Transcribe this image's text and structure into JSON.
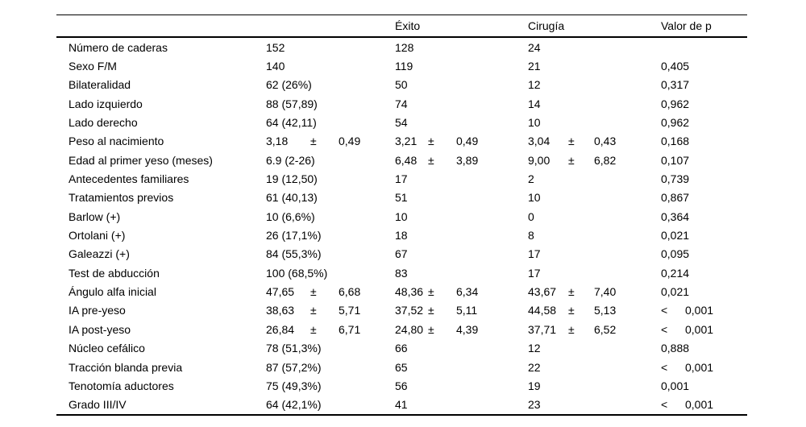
{
  "table": {
    "columns": [
      "",
      "",
      "Éxito",
      "Cirugía",
      "Valor de p"
    ],
    "pm_symbol": "±",
    "lt_symbol": "<",
    "rows": [
      {
        "label": "Número de caderas",
        "total": "152",
        "exito": "128",
        "cirugia": "24",
        "p": ""
      },
      {
        "label": "Sexo F/M",
        "total": "140",
        "exito": "119",
        "cirugia": "21",
        "p": "0,405"
      },
      {
        "label": "Bilateralidad",
        "total": "62 (26%)",
        "exito": "50",
        "cirugia": "12",
        "p": "0,317"
      },
      {
        "label": "Lado izquierdo",
        "total": "88 (57,89)",
        "exito": "74",
        "cirugia": "14",
        "p": "0,962"
      },
      {
        "label": "Lado derecho",
        "total": "64 (42,11)",
        "exito": "54",
        "cirugia": "10",
        "p": "0,962"
      },
      {
        "label": "Peso al nacimiento",
        "total": {
          "v": "3,18",
          "sd": "0,49"
        },
        "exito": {
          "v": "3,21",
          "sd": "0,49"
        },
        "cirugia": {
          "v": "3,04",
          "sd": "0,43"
        },
        "p": "0,168"
      },
      {
        "label": "Edad al primer yeso (meses)",
        "total": "6.9 (2-26)",
        "exito": {
          "v": "6,48",
          "sd": "3,89"
        },
        "cirugia": {
          "v": "9,00",
          "sd": "6,82"
        },
        "p": "0,107"
      },
      {
        "label": "Antecedentes familiares",
        "total": "19 (12,50)",
        "exito": "17",
        "cirugia": "2",
        "p": "0,739"
      },
      {
        "label": "Tratamientos previos",
        "total": "61 (40,13)",
        "exito": "51",
        "cirugia": "10",
        "p": "0,867"
      },
      {
        "label": "Barlow (+)",
        "total": "10 (6,6%)",
        "exito": "10",
        "cirugia": "0",
        "p": "0,364"
      },
      {
        "label": "Ortolani (+)",
        "total": "26 (17,1%)",
        "exito": "18",
        "cirugia": "8",
        "p": "0,021"
      },
      {
        "label": "Galeazzi (+)",
        "total": "84 (55,3%)",
        "exito": "67",
        "cirugia": "17",
        "p": "0,095"
      },
      {
        "label": "Test de abducción",
        "total": "100 (68,5%)",
        "exito": "83",
        "cirugia": "17",
        "p": "0,214"
      },
      {
        "label": "Ángulo alfa inicial",
        "total": {
          "v": "47,65",
          "sd": "6,68"
        },
        "exito": {
          "v": "48,36",
          "sd": "6,34"
        },
        "cirugia": {
          "v": "43,67",
          "sd": "7,40"
        },
        "p": "0,021"
      },
      {
        "label": "IA pre-yeso",
        "total": {
          "v": "38,63",
          "sd": "5,71"
        },
        "exito": {
          "v": "37,52",
          "sd": "5,11"
        },
        "cirugia": {
          "v": "44,58",
          "sd": "5,13"
        },
        "p": {
          "lt": true,
          "v": "0,001"
        }
      },
      {
        "label": "IA post-yeso",
        "total": {
          "v": "26,84",
          "sd": "6,71"
        },
        "exito": {
          "v": "24,80",
          "sd": "4,39"
        },
        "cirugia": {
          "v": "37,71",
          "sd": "6,52"
        },
        "p": {
          "lt": true,
          "v": "0,001"
        }
      },
      {
        "label": "Núcleo cefálico",
        "total": "78 (51,3%)",
        "exito": "66",
        "cirugia": "12",
        "p": "0,888"
      },
      {
        "label": "Tracción blanda previa",
        "total": "87 (57,2%)",
        "exito": "65",
        "cirugia": "22",
        "p": {
          "lt": true,
          "v": "0,001"
        }
      },
      {
        "label": "Tenotomía aductores",
        "total": "75 (49,3%)",
        "exito": "56",
        "cirugia": "19",
        "p": "0,001"
      },
      {
        "label": "Grado III/IV",
        "total": "64 (42,1%)",
        "exito": "41",
        "cirugia": "23",
        "p": {
          "lt": true,
          "v": "0,001"
        }
      }
    ]
  }
}
